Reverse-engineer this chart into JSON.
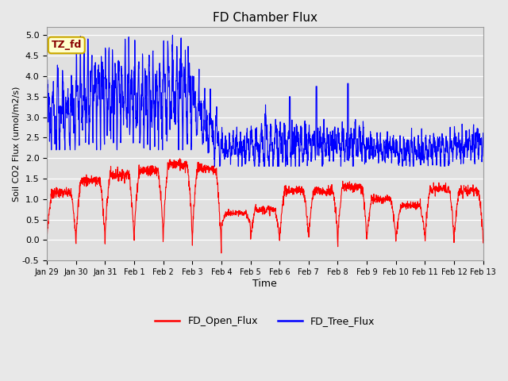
{
  "title": "FD Chamber Flux",
  "xlabel": "Time",
  "ylabel": "Soil CO2 Flux (umol/m2/s)",
  "ylim": [
    -0.5,
    5.2
  ],
  "xlim_days": [
    0,
    15
  ],
  "bg_color": "#e8e8e8",
  "plot_bg": "#e0e0e0",
  "grid_color": "white",
  "annotation_text": "TZ_fd",
  "annotation_bg": "#ffffcc",
  "annotation_border": "#ccaa00",
  "annotation_text_color": "#880000",
  "legend_entries": [
    "FD_Open_Flux",
    "FD_Tree_Flux"
  ],
  "open_color": "red",
  "tree_color": "blue",
  "x_tick_labels": [
    "Jan 29",
    "Jan 30",
    "Jan 31",
    "Feb 1",
    "Feb 2",
    "Feb 3",
    "Feb 4",
    "Feb 5",
    "Feb 6",
    "Feb 7",
    "Feb 8",
    "Feb 9",
    "Feb 10",
    "Feb 11",
    "Feb 12",
    "Feb 13"
  ],
  "x_tick_positions": [
    0,
    1,
    2,
    3,
    4,
    5,
    6,
    7,
    8,
    9,
    10,
    11,
    12,
    13,
    14,
    15
  ],
  "yticks": [
    -0.5,
    0.0,
    0.5,
    1.0,
    1.5,
    2.0,
    2.5,
    3.0,
    3.5,
    4.0,
    4.5,
    5.0
  ]
}
